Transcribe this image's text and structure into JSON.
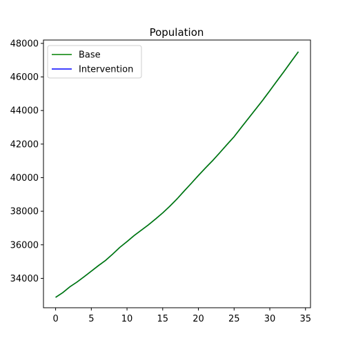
{
  "chart_data": {
    "type": "line",
    "title": "Population",
    "xlabel": "",
    "ylabel": "",
    "xlim": [
      -1.7,
      35.7
    ],
    "ylim": [
      32250,
      48200
    ],
    "x_ticks": [
      0,
      5,
      10,
      15,
      20,
      25,
      30,
      35
    ],
    "y_ticks": [
      34000,
      36000,
      38000,
      40000,
      42000,
      44000,
      46000,
      48000
    ],
    "grid": false,
    "legend_position": "top-left",
    "x": [
      0,
      1,
      2,
      3,
      4,
      5,
      6,
      7,
      8,
      9,
      10,
      11,
      12,
      13,
      14,
      15,
      16,
      17,
      18,
      19,
      20,
      21,
      22,
      23,
      24,
      25,
      26,
      27,
      28,
      29,
      30,
      31,
      32,
      33,
      34
    ],
    "series": [
      {
        "name": "Base",
        "color": "#008000",
        "values": [
          32870,
          33150,
          33500,
          33780,
          34100,
          34430,
          34760,
          35070,
          35450,
          35850,
          36190,
          36550,
          36870,
          37190,
          37540,
          37900,
          38300,
          38730,
          39200,
          39660,
          40130,
          40580,
          41020,
          41490,
          41970,
          42440,
          42990,
          43530,
          44070,
          44610,
          45180,
          45760,
          46330,
          46920,
          47500
        ]
      },
      {
        "name": "Intervention",
        "color": "#0000ff",
        "values": [
          32870,
          33150,
          33500,
          33780,
          34100,
          34430,
          34760,
          35070,
          35450,
          35850,
          36190,
          36550,
          36870,
          37190,
          37540,
          37900,
          38300,
          38730,
          39200,
          39660,
          40130,
          40580,
          41020,
          41490,
          41970,
          42440,
          42990,
          43530,
          44070,
          44610,
          45180,
          45760,
          46330,
          46920,
          47500
        ]
      }
    ]
  }
}
